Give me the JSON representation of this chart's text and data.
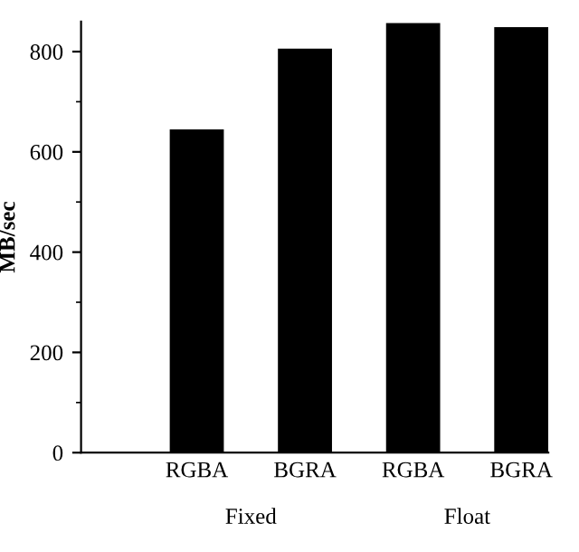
{
  "chart_data": {
    "type": "bar",
    "ylabel": "MB/sec",
    "categories": [
      "RGBA",
      "BGRA",
      "RGBA",
      "BGRA"
    ],
    "values": [
      645,
      806,
      857,
      849
    ],
    "color": "#000000",
    "ylim": [
      0,
      860
    ],
    "yticks": [
      0,
      200,
      400,
      600,
      800
    ],
    "grid": false,
    "legend": false,
    "annotations": [
      "Fixed",
      "Float"
    ]
  }
}
